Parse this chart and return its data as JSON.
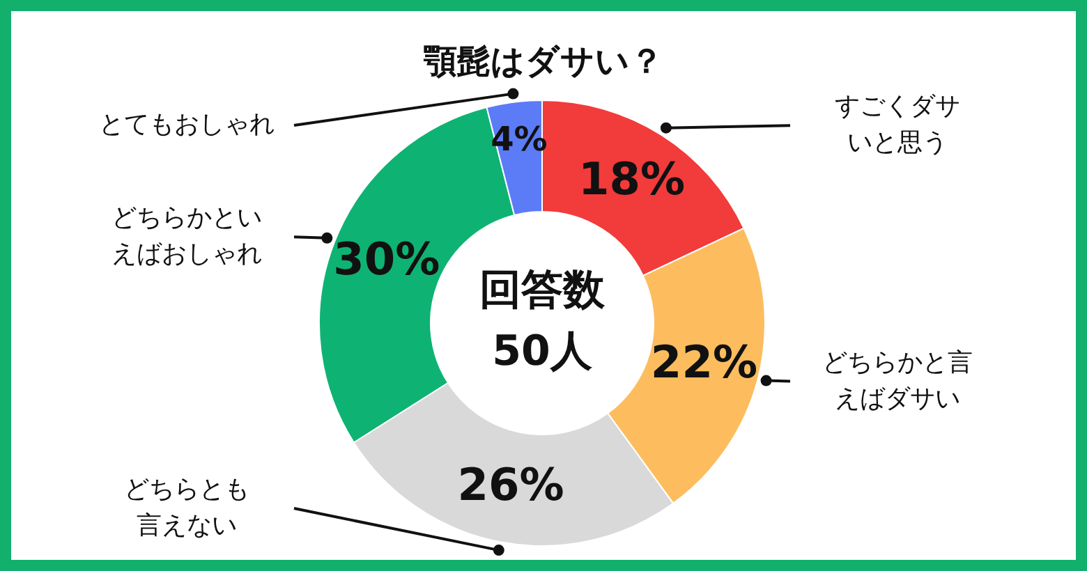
{
  "chart_data": {
    "type": "donut",
    "title": "顎髭はダサい？",
    "categories": [
      "すごくダサいと思う",
      "どちらかと言えばダサい",
      "どちらとも言えない",
      "どちらかといえばおしゃれ",
      "とてもおしゃれ"
    ],
    "values": [
      18,
      22,
      26,
      30,
      4
    ],
    "colors": [
      "#f23b3b",
      "#fdbd5e",
      "#d9d9d9",
      "#0eb373",
      "#5b7cf6"
    ],
    "value_labels": [
      "18%",
      "22%",
      "26%",
      "30%",
      "4%"
    ],
    "annotations": [
      "回答数\n50人"
    ]
  }
}
